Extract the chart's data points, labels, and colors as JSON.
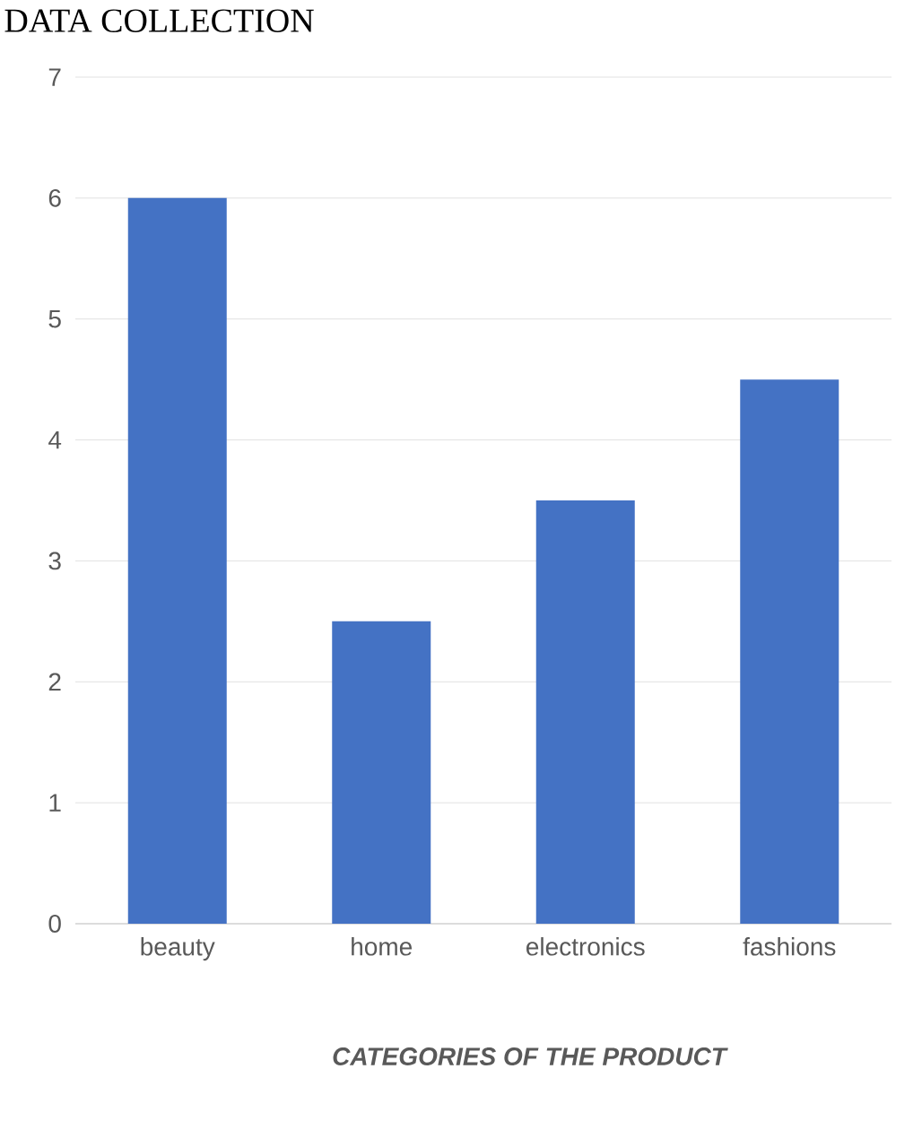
{
  "chart_data": {
    "type": "bar",
    "title": "DATA COLLECTION",
    "xlabel": "CATEGORIES OF THE PRODUCT",
    "categories": [
      "beauty",
      "home",
      "electronics",
      "fashions"
    ],
    "values": [
      6,
      2.5,
      3.5,
      4.5
    ],
    "color": "#4472c4",
    "ylim": [
      0,
      7
    ],
    "yticks": [
      0,
      1,
      2,
      3,
      4,
      5,
      6,
      7
    ],
    "grid": "y"
  }
}
